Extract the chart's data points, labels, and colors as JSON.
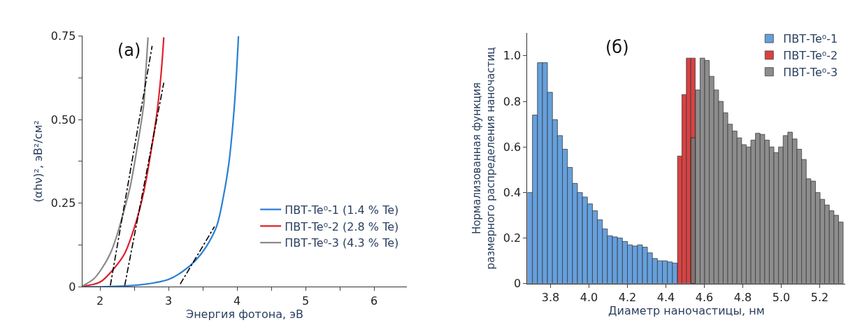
{
  "chart_data": [
    {
      "type": "line",
      "xlabel": "Энергия фотона, эВ",
      "ylabel": "(αhν)², эВ²/см²",
      "annotations": [
        "(a)"
      ],
      "xlim": [
        1.74,
        6.48
      ],
      "ylim": [
        0,
        0.75
      ],
      "xticks": [
        2,
        {
          "value": 2.5,
          "label": null
        },
        3,
        {
          "value": 3.5,
          "label": null
        },
        4,
        {
          "value": 4.5,
          "label": null
        },
        5,
        {
          "value": 5.5,
          "label": null
        },
        6
      ],
      "yticks": [
        {
          "value": 0,
          "label": "0"
        },
        {
          "value": 0.125,
          "label": null
        },
        0.25,
        {
          "value": 0.375,
          "label": null
        },
        {
          "value": 0.5,
          "label": "0.50"
        },
        {
          "value": 0.625,
          "label": null
        },
        0.75
      ],
      "legend": "bottom right",
      "line_style": "solid",
      "series": [
        {
          "name": "ПВТ-Te⁰-1 (1.4 % Te)",
          "color": "#2a7fd4",
          "x": [
            1.74,
            2.0,
            2.3,
            2.6,
            2.8,
            3.0,
            3.2,
            3.4,
            3.55,
            3.7,
            3.8,
            3.88,
            3.94,
            3.98,
            4.02
          ],
          "values": [
            0,
            0,
            0.002,
            0.006,
            0.012,
            0.022,
            0.045,
            0.08,
            0.12,
            0.18,
            0.27,
            0.37,
            0.49,
            0.6,
            0.75
          ]
        },
        {
          "name": "ПВТ-Te⁰-2 (2.8 % Te)",
          "color": "#e0202a",
          "x": [
            1.74,
            2.0,
            2.2,
            2.36,
            2.52,
            2.64,
            2.74,
            2.83,
            2.89,
            2.93
          ],
          "values": [
            0.002,
            0.014,
            0.054,
            0.1,
            0.19,
            0.286,
            0.4,
            0.52,
            0.635,
            0.746
          ]
        },
        {
          "name": "ПВТ-Te⁰-3 (4.3 % Te)",
          "color": "#8a8a8a",
          "x": [
            1.74,
            1.91,
            2.03,
            2.15,
            2.24,
            2.32,
            2.44,
            2.56,
            2.64,
            2.66,
            2.7
          ],
          "values": [
            0.002,
            0.024,
            0.056,
            0.1,
            0.15,
            0.206,
            0.3,
            0.44,
            0.55,
            0.62,
            0.746
          ]
        },
        {
          "color": "#000000",
          "line_style": "dashdot",
          "x": [
            2.15,
            2.76
          ],
          "values": [
            0.004,
            0.72
          ]
        },
        {
          "color": "#000000",
          "line_style": "dashdot",
          "x": [
            2.36,
            2.93
          ],
          "values": [
            0.004,
            0.61
          ]
        },
        {
          "color": "#000000",
          "line_style": "dashdot",
          "x": [
            3.17,
            3.67
          ],
          "values": [
            0.008,
            0.18
          ]
        }
      ]
    },
    {
      "type": "bar",
      "xlabel": "Диаметр наночастицы, нм",
      "ylabel": "Нормализованная функция\nразмерного распределения наночастиц",
      "annotations": [
        "(б)"
      ],
      "xlim": [
        3.68,
        5.334
      ],
      "ylim": [
        0,
        1.1
      ],
      "xticks": [
        3.8,
        {
          "value": 4.0,
          "label": "4.0"
        },
        4.2,
        4.4,
        4.6,
        4.8,
        {
          "value": 5.0,
          "label": "5.0"
        },
        5.2
      ],
      "yticks": [
        0,
        0.2,
        0.4,
        0.6,
        0.8,
        {
          "value": 1.0,
          "label": "1.0"
        }
      ],
      "legend": "top right",
      "series": [
        {
          "name": "ПВТ-Te⁰-1",
          "color": "#4a90d9",
          "x": [
            3.693,
            3.719,
            3.745,
            3.771,
            3.797,
            3.823,
            3.849,
            3.875,
            3.901,
            3.927,
            3.953,
            3.979,
            4.005,
            4.031,
            4.057,
            4.083,
            4.109,
            4.135,
            4.161,
            4.187,
            4.213,
            4.239,
            4.265,
            4.291,
            4.317,
            4.343,
            4.369,
            4.395,
            4.421,
            4.447
          ],
          "values": [
            0.4,
            0.74,
            0.97,
            0.97,
            0.84,
            0.72,
            0.65,
            0.59,
            0.51,
            0.44,
            0.4,
            0.38,
            0.35,
            0.32,
            0.28,
            0.24,
            0.21,
            0.205,
            0.2,
            0.185,
            0.17,
            0.165,
            0.17,
            0.16,
            0.135,
            0.11,
            0.1,
            0.1,
            0.095,
            0.09
          ]
        },
        {
          "name": "ПВТ-Te⁰-2",
          "color": "#d42020",
          "x": [
            4.472,
            4.495,
            4.518,
            4.541
          ],
          "values": [
            0.56,
            0.83,
            0.99,
            0.99
          ]
        },
        {
          "name": "ПВТ-Te⁰-3",
          "color": "#7a7a7a",
          "x": [
            4.542,
            4.566,
            4.59,
            4.614,
            4.638,
            4.662,
            4.686,
            4.71,
            4.734,
            4.758,
            4.782,
            4.806,
            4.83,
            4.854,
            4.878,
            4.902,
            4.926,
            4.95,
            4.974,
            4.998,
            5.022,
            5.046,
            5.07,
            5.094,
            5.118,
            5.142,
            5.166,
            5.19,
            5.214,
            5.238,
            5.262,
            5.286,
            5.31
          ],
          "values": [
            0.64,
            0.85,
            0.99,
            0.98,
            0.91,
            0.85,
            0.8,
            0.75,
            0.7,
            0.67,
            0.64,
            0.61,
            0.6,
            0.63,
            0.66,
            0.655,
            0.63,
            0.6,
            0.575,
            0.6,
            0.65,
            0.665,
            0.635,
            0.59,
            0.545,
            0.46,
            0.45,
            0.4,
            0.37,
            0.345,
            0.32,
            0.3,
            0.27
          ]
        }
      ]
    }
  ]
}
